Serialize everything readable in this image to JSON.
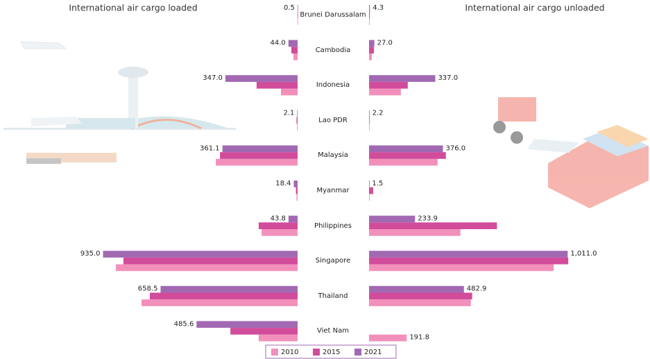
{
  "chart_data": {
    "type": "butterfly-bar",
    "categories": [
      "Brunei Darussalam",
      "Cambodia",
      "Indonesia",
      "Lao PDR",
      "Malaysia",
      "Myanmar",
      "Philippines",
      "Singapore",
      "Thailand",
      "Viet Nam"
    ],
    "legend": [
      {
        "name": "2010",
        "color": "#f290bb"
      },
      {
        "name": "2015",
        "color": "#d24c9c"
      },
      {
        "name": "2021",
        "color": "#a269b3"
      }
    ],
    "panels": [
      {
        "title": "International air cargo loaded",
        "side": "left",
        "xlim": [
          0,
          1430
        ],
        "series": [
          {
            "values": [
              0.5,
              20,
              80,
              3,
              393,
              5,
              173,
              873,
              750,
              187
            ]
          },
          {
            "values": [
              0.5,
              30,
              197,
              5,
              373,
              8,
              187,
              837,
              710,
              323
            ]
          },
          {
            "values": [
              0.5,
              44.0,
              347.0,
              2.1,
              361.1,
              18.4,
              43.8,
              935.0,
              658.5,
              485.6
            ],
            "value_labels": [
              "0.5",
              "44.0",
              "347.0",
              "2.1",
              "361.1",
              "18.4",
              "43.8",
              "935.0",
              "658.5",
              "485.6"
            ]
          }
        ]
      },
      {
        "title": "International air cargo unloaded",
        "side": "right",
        "xlim": [
          0,
          1430
        ],
        "series": [
          {
            "values": [
              3,
              14,
              162,
              1,
              349,
              3,
              465,
              940,
              518,
              191.8
            ],
            "value_labels": [
              null,
              null,
              null,
              null,
              null,
              null,
              null,
              null,
              null,
              "191.8"
            ]
          },
          {
            "values": [
              4,
              25,
              197,
              1,
              391,
              21,
              651,
              1014,
              525,
              null
            ]
          },
          {
            "values": [
              4.3,
              27.0,
              337.0,
              2.2,
              376.0,
              1.5,
              233.9,
              1011.0,
              482.9,
              null
            ],
            "value_labels": [
              "4.3",
              "27.0",
              "337.0",
              "2.2",
              "376.0",
              "1.5",
              "233.9",
              "1,011.0",
              "482.9",
              null
            ]
          }
        ]
      }
    ]
  }
}
